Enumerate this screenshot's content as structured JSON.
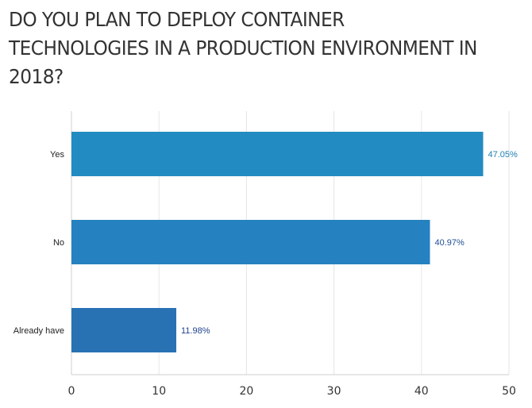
{
  "chart_data": {
    "type": "bar",
    "orientation": "horizontal",
    "title": "DO YOU PLAN TO DEPLOY CONTAINER TECHNOLOGIES IN A PRODUCTION ENVIRONMENT IN 2018?",
    "categories": [
      "Yes",
      "No",
      "Already have"
    ],
    "values": [
      47.05,
      40.97,
      11.98
    ],
    "value_labels": [
      "47.05%",
      "40.97%",
      "11.98%"
    ],
    "bar_colors": [
      "#228bc1",
      "#2581bf",
      "#2872b4"
    ],
    "label_colors": [
      "#1e7fb5",
      "#1f4f94",
      "#1f3f8f"
    ],
    "xlim": [
      0,
      50
    ],
    "xticks": [
      "0",
      "10",
      "20",
      "30",
      "40",
      "50"
    ],
    "xlabel": "",
    "ylabel": "",
    "grid": true,
    "legend": "none"
  }
}
